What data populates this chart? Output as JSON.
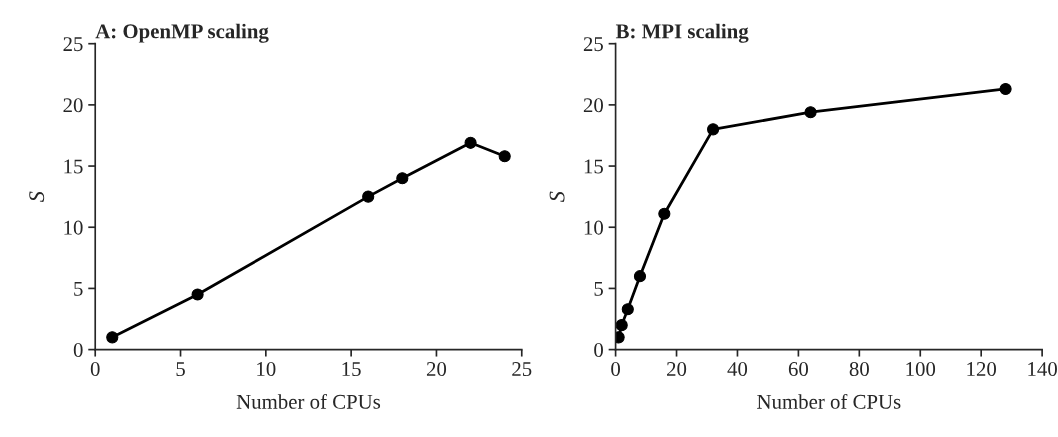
{
  "chart_data": [
    {
      "type": "line",
      "title": "A: OpenMP scaling",
      "xlabel": "Number of CPUs",
      "ylabel": "S",
      "marker": "circle",
      "line_style": "solid",
      "xlim": [
        0,
        25
      ],
      "xticks": [
        0,
        5,
        10,
        15,
        20,
        25
      ],
      "ylim": [
        0,
        25
      ],
      "yticks": [
        0,
        5,
        10,
        15,
        20,
        25
      ],
      "series": [
        {
          "color": "#000000",
          "x": [
            1,
            6,
            16,
            18,
            22,
            24
          ],
          "values": [
            1,
            4.5,
            12.5,
            14,
            16.9,
            15.8
          ]
        }
      ]
    },
    {
      "type": "line",
      "title": "B: MPI scaling",
      "xlabel": "Number of CPUs",
      "ylabel": "S",
      "marker": "circle",
      "line_style": "solid",
      "xlim": [
        0,
        140
      ],
      "xticks": [
        0,
        20,
        40,
        60,
        80,
        100,
        120,
        140
      ],
      "ylim": [
        0,
        25
      ],
      "yticks": [
        0,
        5,
        10,
        15,
        20,
        25
      ],
      "series": [
        {
          "color": "#000000",
          "x": [
            1,
            2,
            4,
            8,
            16,
            32,
            64,
            128
          ],
          "values": [
            1,
            2,
            3.3,
            6,
            11.1,
            18,
            19.4,
            21.3
          ]
        }
      ]
    }
  ]
}
